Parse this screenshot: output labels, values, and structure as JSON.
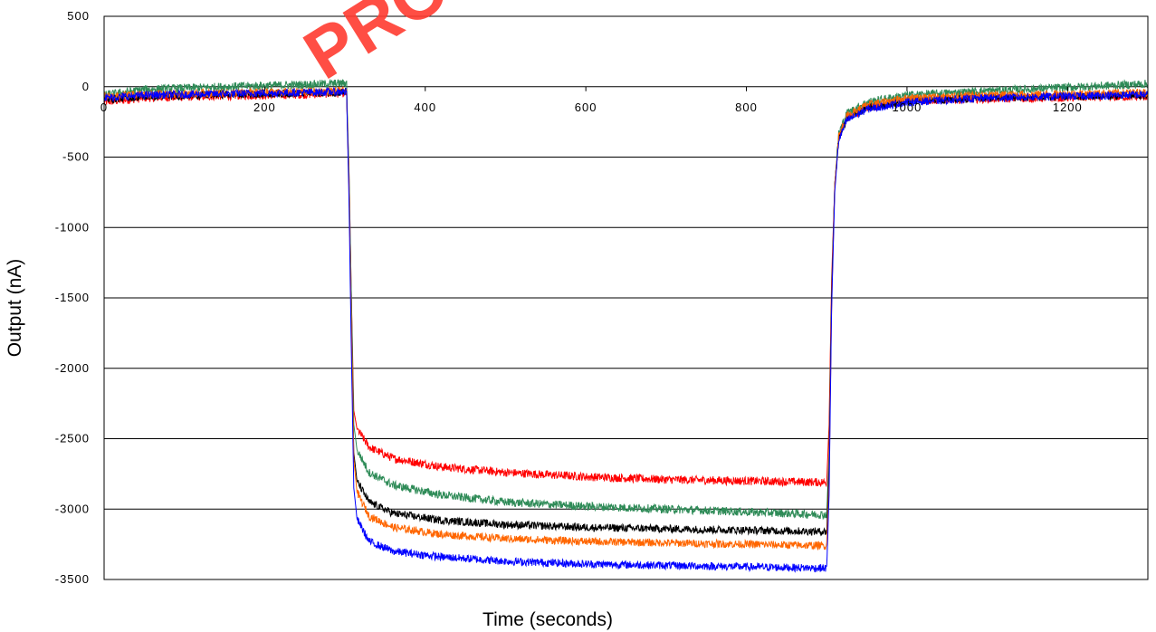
{
  "chart_data": {
    "type": "line",
    "xlabel": "Time (seconds)",
    "ylabel": "Output (nA)",
    "xlim": [
      0,
      1300
    ],
    "ylim": [
      -3500,
      500
    ],
    "x_ticks": [
      0,
      200,
      400,
      600,
      800,
      1000,
      1200
    ],
    "y_ticks": [
      500,
      0,
      -500,
      -1000,
      -1500,
      -2000,
      -2500,
      -3000,
      -3500
    ],
    "grid": "horizontal",
    "legend": "none",
    "watermark": "PRO",
    "series": [
      {
        "color": "#ff0000",
        "noise": 30,
        "points": [
          [
            0,
            -110
          ],
          [
            50,
            -80
          ],
          [
            150,
            -65
          ],
          [
            250,
            -55
          ],
          [
            302,
            -45
          ],
          [
            305,
            -600
          ],
          [
            308,
            -1500
          ],
          [
            311,
            -2300
          ],
          [
            315,
            -2430
          ],
          [
            330,
            -2560
          ],
          [
            360,
            -2640
          ],
          [
            420,
            -2700
          ],
          [
            500,
            -2740
          ],
          [
            600,
            -2770
          ],
          [
            700,
            -2790
          ],
          [
            800,
            -2800
          ],
          [
            900,
            -2810
          ],
          [
            903,
            -2400
          ],
          [
            906,
            -1400
          ],
          [
            910,
            -700
          ],
          [
            915,
            -350
          ],
          [
            925,
            -220
          ],
          [
            950,
            -150
          ],
          [
            1000,
            -100
          ],
          [
            1100,
            -85
          ],
          [
            1300,
            -70
          ]
        ]
      },
      {
        "color": "#2e8b57",
        "noise": 30,
        "points": [
          [
            0,
            -60
          ],
          [
            50,
            -20
          ],
          [
            150,
            0
          ],
          [
            250,
            15
          ],
          [
            302,
            25
          ],
          [
            305,
            -600
          ],
          [
            308,
            -1500
          ],
          [
            311,
            -2400
          ],
          [
            315,
            -2580
          ],
          [
            330,
            -2740
          ],
          [
            360,
            -2830
          ],
          [
            420,
            -2900
          ],
          [
            500,
            -2950
          ],
          [
            600,
            -2980
          ],
          [
            700,
            -3000
          ],
          [
            800,
            -3020
          ],
          [
            900,
            -3040
          ],
          [
            903,
            -2600
          ],
          [
            906,
            -1500
          ],
          [
            910,
            -700
          ],
          [
            915,
            -330
          ],
          [
            925,
            -190
          ],
          [
            950,
            -110
          ],
          [
            1000,
            -60
          ],
          [
            1100,
            -30
          ],
          [
            1300,
            20
          ]
        ]
      },
      {
        "color": "#000000",
        "noise": 28,
        "points": [
          [
            0,
            -90
          ],
          [
            50,
            -70
          ],
          [
            150,
            -55
          ],
          [
            250,
            -45
          ],
          [
            302,
            -40
          ],
          [
            305,
            -700
          ],
          [
            308,
            -1700
          ],
          [
            311,
            -2600
          ],
          [
            315,
            -2800
          ],
          [
            330,
            -2950
          ],
          [
            360,
            -3030
          ],
          [
            420,
            -3080
          ],
          [
            500,
            -3110
          ],
          [
            600,
            -3130
          ],
          [
            700,
            -3140
          ],
          [
            800,
            -3150
          ],
          [
            900,
            -3160
          ],
          [
            903,
            -2700
          ],
          [
            906,
            -1500
          ],
          [
            910,
            -700
          ],
          [
            915,
            -360
          ],
          [
            925,
            -230
          ],
          [
            950,
            -150
          ],
          [
            1000,
            -100
          ],
          [
            1100,
            -80
          ],
          [
            1300,
            -60
          ]
        ]
      },
      {
        "color": "#ff6600",
        "noise": 28,
        "points": [
          [
            0,
            -70
          ],
          [
            50,
            -55
          ],
          [
            150,
            -45
          ],
          [
            250,
            -35
          ],
          [
            302,
            -30
          ],
          [
            305,
            -700
          ],
          [
            308,
            -1700
          ],
          [
            311,
            -2650
          ],
          [
            315,
            -2880
          ],
          [
            330,
            -3050
          ],
          [
            360,
            -3130
          ],
          [
            420,
            -3180
          ],
          [
            500,
            -3210
          ],
          [
            600,
            -3230
          ],
          [
            700,
            -3240
          ],
          [
            800,
            -3250
          ],
          [
            900,
            -3260
          ],
          [
            903,
            -2800
          ],
          [
            906,
            -1600
          ],
          [
            910,
            -700
          ],
          [
            915,
            -350
          ],
          [
            925,
            -210
          ],
          [
            950,
            -130
          ],
          [
            1000,
            -80
          ],
          [
            1100,
            -60
          ],
          [
            1300,
            -40
          ]
        ]
      },
      {
        "color": "#0000ff",
        "noise": 28,
        "points": [
          [
            0,
            -80
          ],
          [
            50,
            -60
          ],
          [
            150,
            -50
          ],
          [
            250,
            -40
          ],
          [
            302,
            -35
          ],
          [
            305,
            -800
          ],
          [
            308,
            -1900
          ],
          [
            311,
            -2850
          ],
          [
            315,
            -3070
          ],
          [
            330,
            -3230
          ],
          [
            360,
            -3300
          ],
          [
            420,
            -3340
          ],
          [
            500,
            -3370
          ],
          [
            600,
            -3390
          ],
          [
            700,
            -3400
          ],
          [
            800,
            -3410
          ],
          [
            900,
            -3420
          ],
          [
            903,
            -2900
          ],
          [
            906,
            -1600
          ],
          [
            910,
            -750
          ],
          [
            915,
            -380
          ],
          [
            925,
            -240
          ],
          [
            950,
            -160
          ],
          [
            1000,
            -110
          ],
          [
            1100,
            -80
          ],
          [
            1300,
            -55
          ]
        ]
      }
    ]
  }
}
